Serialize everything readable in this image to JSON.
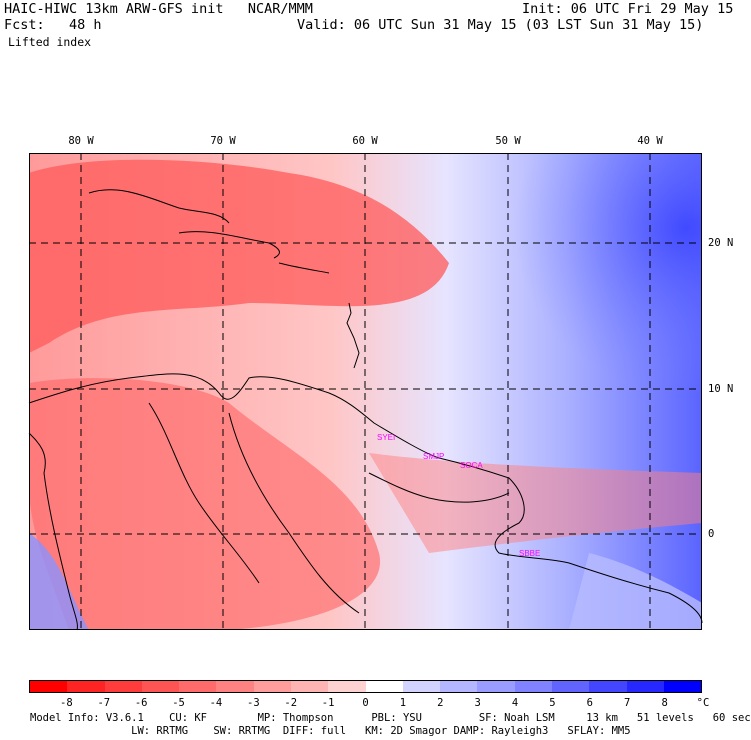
{
  "header": {
    "model_line": "HAIC-HIWC 13km ARW-GFS init   NCAR/MMM",
    "fcst_line": "Fcst:   48 h",
    "init_line": "Init: 06 UTC Fri 29 May 15",
    "valid_line": "Valid: 06 UTC Sun 31 May 15 (03 LST Sun 31 May 15)",
    "field": "Lifted index"
  },
  "map": {
    "longitude_labels": [
      "80 W",
      "70 W",
      "60 W",
      "50 W",
      "40 W"
    ],
    "latitude_labels": [
      "20 N",
      "10 N",
      "0"
    ],
    "stations": [
      "SYEI",
      "SMJP",
      "SOCA",
      "SBBE"
    ],
    "station_color": "#ff00ff"
  },
  "colorbar": {
    "labels": [
      "-8",
      "-7",
      "-6",
      "-5",
      "-4",
      "-3",
      "-2",
      "-1",
      "0",
      "1",
      "2",
      "3",
      "4",
      "5",
      "6",
      "7",
      "8"
    ],
    "unit": "°C",
    "colors": [
      "#ff0000",
      "#ff2424",
      "#ff3c3c",
      "#ff5454",
      "#ff6a6a",
      "#ff8282",
      "#ff9c9c",
      "#ffb4b4",
      "#ffd2d2",
      "#ffffff",
      "#d2d4ff",
      "#b4b6ff",
      "#9a9cff",
      "#8082ff",
      "#6264ff",
      "#4446ff",
      "#2628ff",
      "#0000ff"
    ]
  },
  "model_info": {
    "line1": "Model Info: V3.6.1    CU: KF        MP: Thompson      PBL: YSU         SF: Noah LSM     13 km   51 levels   60 sec",
    "line2": "                LW: RRTMG    SW: RRTMG  DIFF: full   KM: 2D Smagor DAMP: Rayleigh3   SFLAY: MM5"
  }
}
